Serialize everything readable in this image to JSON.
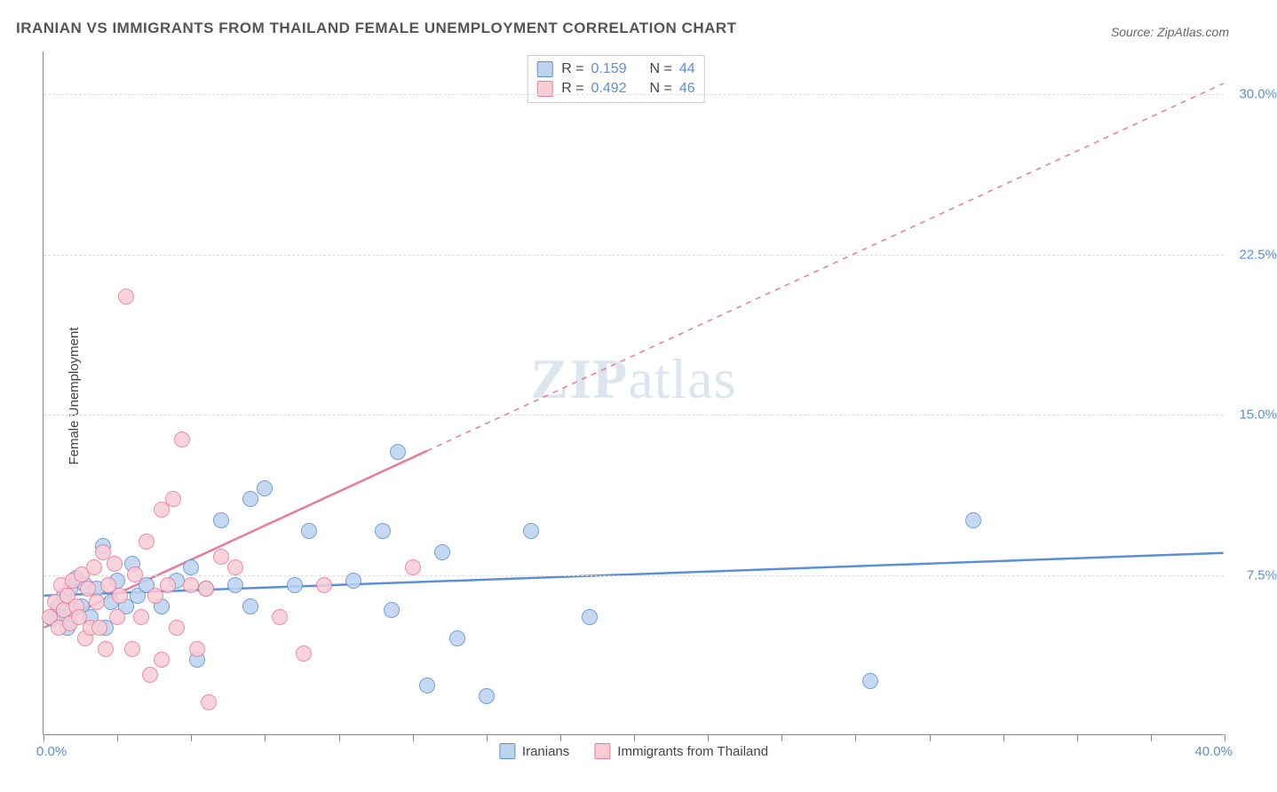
{
  "title": "IRANIAN VS IMMIGRANTS FROM THAILAND FEMALE UNEMPLOYMENT CORRELATION CHART",
  "source": "Source: ZipAtlas.com",
  "ylabel": "Female Unemployment",
  "watermark_a": "ZIP",
  "watermark_b": "atlas",
  "chart": {
    "type": "scatter",
    "xlim": [
      0,
      40
    ],
    "ylim": [
      0,
      32
    ],
    "x_min_label": "0.0%",
    "x_max_label": "40.0%",
    "y_ticks": [
      7.5,
      15.0,
      22.5,
      30.0
    ],
    "y_tick_labels": [
      "7.5%",
      "15.0%",
      "22.5%",
      "30.0%"
    ],
    "x_tick_positions": [
      0,
      2.5,
      5,
      7.5,
      10,
      12.5,
      15,
      17.5,
      20,
      22.5,
      25,
      27.5,
      30,
      32.5,
      35,
      37.5,
      40
    ],
    "background_color": "#ffffff",
    "grid_color": "#dddddd",
    "axis_color": "#888888",
    "tick_label_color": "#5b8fd6",
    "series": [
      {
        "name": "Iranians",
        "fill": "#bcd4f0",
        "stroke": "#5b8fd6",
        "r_value": "0.159",
        "n_value": "44",
        "marker_radius": 9,
        "trend": {
          "x1": 0,
          "y1": 6.5,
          "x2": 40,
          "y2": 8.5,
          "solid_until_x": 40,
          "dash": false
        },
        "points": [
          [
            0.3,
            5.4
          ],
          [
            0.5,
            6.0
          ],
          [
            0.6,
            5.5
          ],
          [
            0.7,
            6.5
          ],
          [
            0.8,
            5.0
          ],
          [
            0.9,
            6.8
          ],
          [
            1.0,
            5.8
          ],
          [
            1.1,
            7.3
          ],
          [
            1.3,
            6.0
          ],
          [
            1.4,
            7.0
          ],
          [
            1.6,
            5.5
          ],
          [
            1.8,
            6.8
          ],
          [
            2.0,
            8.8
          ],
          [
            2.1,
            5.0
          ],
          [
            2.3,
            6.2
          ],
          [
            2.5,
            7.2
          ],
          [
            2.8,
            6.0
          ],
          [
            3.0,
            8.0
          ],
          [
            3.2,
            6.5
          ],
          [
            3.5,
            7.0
          ],
          [
            4.0,
            6.0
          ],
          [
            4.5,
            7.2
          ],
          [
            5.0,
            7.8
          ],
          [
            5.2,
            3.5
          ],
          [
            5.5,
            6.8
          ],
          [
            6.0,
            10.0
          ],
          [
            6.5,
            7.0
          ],
          [
            7.0,
            11.0
          ],
          [
            7.0,
            6.0
          ],
          [
            7.5,
            11.5
          ],
          [
            8.5,
            7.0
          ],
          [
            9.0,
            9.5
          ],
          [
            10.5,
            7.2
          ],
          [
            11.5,
            9.5
          ],
          [
            11.8,
            5.8
          ],
          [
            12.0,
            13.2
          ],
          [
            13.0,
            2.3
          ],
          [
            13.5,
            8.5
          ],
          [
            14.0,
            4.5
          ],
          [
            15.0,
            1.8
          ],
          [
            16.5,
            9.5
          ],
          [
            18.5,
            5.5
          ],
          [
            28.0,
            2.5
          ],
          [
            31.5,
            10.0
          ]
        ]
      },
      {
        "name": "Immigrants from Thailand",
        "fill": "#f8cdd6",
        "stroke": "#e87a9a",
        "r_value": "0.492",
        "n_value": "46",
        "marker_radius": 9,
        "trend": {
          "x1": 0,
          "y1": 5.0,
          "x2": 40,
          "y2": 30.5,
          "solid_until_x": 13,
          "dash": true
        },
        "points": [
          [
            0.2,
            5.5
          ],
          [
            0.4,
            6.2
          ],
          [
            0.5,
            5.0
          ],
          [
            0.6,
            7.0
          ],
          [
            0.7,
            5.8
          ],
          [
            0.8,
            6.5
          ],
          [
            0.9,
            5.2
          ],
          [
            1.0,
            7.2
          ],
          [
            1.1,
            6.0
          ],
          [
            1.2,
            5.5
          ],
          [
            1.3,
            7.5
          ],
          [
            1.4,
            4.5
          ],
          [
            1.5,
            6.8
          ],
          [
            1.6,
            5.0
          ],
          [
            1.7,
            7.8
          ],
          [
            1.8,
            6.2
          ],
          [
            1.9,
            5.0
          ],
          [
            2.0,
            8.5
          ],
          [
            2.1,
            4.0
          ],
          [
            2.2,
            7.0
          ],
          [
            2.4,
            8.0
          ],
          [
            2.5,
            5.5
          ],
          [
            2.6,
            6.5
          ],
          [
            2.8,
            20.5
          ],
          [
            3.0,
            4.0
          ],
          [
            3.1,
            7.5
          ],
          [
            3.3,
            5.5
          ],
          [
            3.5,
            9.0
          ],
          [
            3.6,
            2.8
          ],
          [
            3.8,
            6.5
          ],
          [
            4.0,
            10.5
          ],
          [
            4.0,
            3.5
          ],
          [
            4.2,
            7.0
          ],
          [
            4.4,
            11.0
          ],
          [
            4.5,
            5.0
          ],
          [
            4.7,
            13.8
          ],
          [
            5.0,
            7.0
          ],
          [
            5.2,
            4.0
          ],
          [
            5.5,
            6.8
          ],
          [
            5.6,
            1.5
          ],
          [
            6.0,
            8.3
          ],
          [
            6.5,
            7.8
          ],
          [
            8.0,
            5.5
          ],
          [
            8.8,
            3.8
          ],
          [
            9.5,
            7.0
          ],
          [
            12.5,
            7.8
          ]
        ]
      }
    ],
    "legend_bottom": [
      "Iranians",
      "Immigrants from Thailand"
    ]
  }
}
